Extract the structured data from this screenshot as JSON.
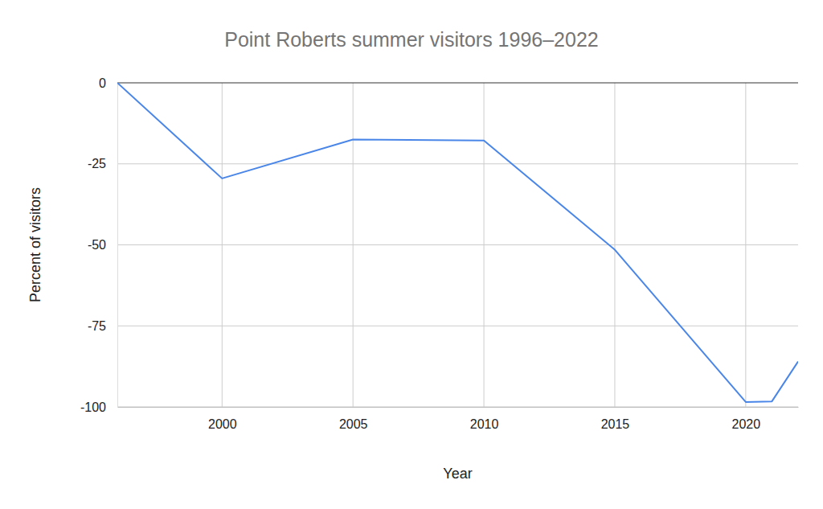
{
  "chart_data": {
    "type": "line",
    "title": "Point Roberts summer visitors 1996–2022",
    "x_label": "Year",
    "y_label": "Percent of visitors",
    "x": [
      1996,
      2000,
      2005,
      2010,
      2015,
      2020,
      2021,
      2022
    ],
    "series": [
      {
        "color": "#4a86e8",
        "values": [
          0,
          -29.5,
          -17.5,
          -17.8,
          -51.5,
          -98.5,
          -98.3,
          -86
        ]
      }
    ],
    "xlim": [
      1996,
      2022
    ],
    "ylim": [
      -100,
      0
    ],
    "xticks": [
      2000,
      2005,
      2010,
      2015,
      2020
    ],
    "yticks": [
      0,
      -25,
      -50,
      -75,
      -100
    ],
    "grid": true
  }
}
